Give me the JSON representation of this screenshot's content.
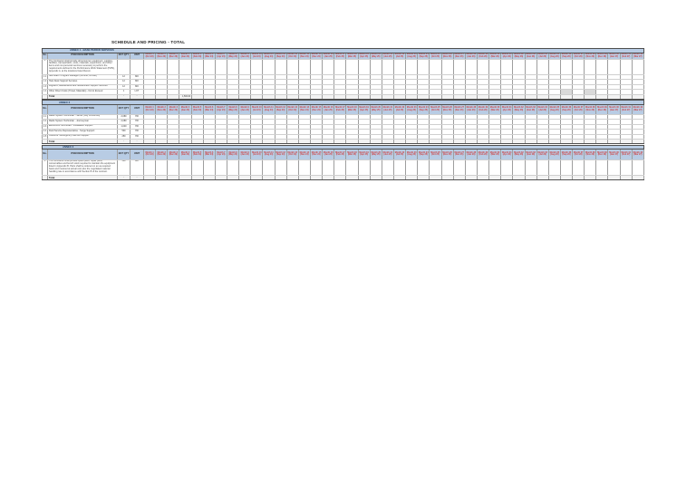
{
  "page": {
    "title": "SCHEDULE AND PRICING - TOTAL"
  },
  "columns": {
    "item_header": "No.",
    "desc_header": "ITEM DESCRIPTION",
    "qty_header": "EST QTY",
    "unit_header": "UNIT",
    "period_headers": [
      [
        "Month 1",
        "(Oct 23)"
      ],
      [
        "Month 2",
        "(Nov 23)"
      ],
      [
        "Month 3",
        "(Dec 23)"
      ],
      [
        "Month 4",
        "(Jan 24)"
      ],
      [
        "Month 5",
        "(Feb 24)"
      ],
      [
        "Month 6",
        "(Mar 24)"
      ],
      [
        "Month 7",
        "(Apr 24)"
      ],
      [
        "Month 8",
        "(May 24)"
      ],
      [
        "Month 9",
        "(Jun 24)"
      ],
      [
        "Month 10",
        "(Jul 24)"
      ],
      [
        "Month 11",
        "(Aug 24)"
      ],
      [
        "Month 12",
        "(Sep 24)"
      ],
      [
        "Month 13",
        "(Oct 24)"
      ],
      [
        "Month 14",
        "(Nov 24)"
      ],
      [
        "Month 15",
        "(Dec 24)"
      ],
      [
        "Month 16",
        "(Jan 25)"
      ],
      [
        "Month 17",
        "(Feb 25)"
      ],
      [
        "Month 18",
        "(Mar 25)"
      ],
      [
        "Month 19",
        "(Apr 25)"
      ],
      [
        "Month 20",
        "(May 25)"
      ],
      [
        "Month 21",
        "(Jun 25)"
      ],
      [
        "Month 22",
        "(Jul 25)"
      ],
      [
        "Month 23",
        "(Aug 25)"
      ],
      [
        "Month 24",
        "(Sep 25)"
      ],
      [
        "Month 25",
        "(Oct 25)"
      ],
      [
        "Month 26",
        "(Nov 25)"
      ],
      [
        "Month 27",
        "(Dec 25)"
      ],
      [
        "Month 28",
        "(Jan 26)"
      ],
      [
        "Month 29",
        "(Feb 26)"
      ],
      [
        "Month 30",
        "(Mar 26)"
      ],
      [
        "Month 31",
        "(Apr 26)"
      ],
      [
        "Month 32",
        "(May 26)"
      ],
      [
        "Month 33",
        "(Jun 26)"
      ],
      [
        "Month 34",
        "(Jul 26)"
      ],
      [
        "Month 35",
        "(Aug 26)"
      ],
      [
        "Month 36",
        "(Sep 26)"
      ],
      [
        "Month 37",
        "(Oct 26)"
      ],
      [
        "Month 38",
        "(Nov 26)"
      ],
      [
        "Month 39",
        "(Dec 26)"
      ],
      [
        "Month 40",
        "(Jan 27)"
      ],
      [
        "Month 41",
        "(Feb 27)"
      ],
      [
        "Month 42",
        "(Mar 27)"
      ]
    ]
  },
  "tables": [
    {
      "band_label": "ANNEX 1 - BASE PERIOD SERVICES",
      "rows": [
        {
          "kind": "tall",
          "num": "1",
          "desc": "The Contractor shall provide all personnel, equipment, supplies, facilities, transportation, tools, materials, supervision, and other items and non-personal services necessary to perform the requirements defined in the Performance Work Statement (PWS), Appendix A, at the locations listed therein.",
          "qty": "",
          "unit": ""
        },
        {
          "kind": "line",
          "num": "1.1",
          "desc": "Site Lead / Program Manager (full time, on-site)",
          "qty": "12",
          "unit": "MO"
        },
        {
          "kind": "line",
          "num": "1.2",
          "desc": "Help Desk Support Services",
          "qty": "12",
          "unit": "MO"
        },
        {
          "kind": "line",
          "num": "1.3",
          "desc": "Logistics, Maintenance and Sustainment Support Services",
          "qty": "12",
          "unit": "MO"
        },
        {
          "kind": "line",
          "num": "1.4",
          "desc": "Other Direct Costs (Travel, Materials) - Not to Exceed",
          "qty": "1",
          "unit": "LOT",
          "shaded": [
            35,
            37
          ]
        }
      ],
      "total_label": "Total",
      "total_qty": "-",
      "total_unit": "-",
      "total_cells": {
        "3": "1,500.00"
      }
    },
    {
      "band_label": "ANNEX 2",
      "rows": [
        {
          "kind": "line",
          "num": "2.1",
          "desc": "Radio System Technician - Senior (Key Personnel)",
          "qty": "2,080",
          "unit": "HR"
        },
        {
          "kind": "line",
          "num": "2.2",
          "desc": "Radio System Technician - Journeyman",
          "qty": "2,080",
          "unit": "HR"
        },
        {
          "kind": "line",
          "num": "2.3",
          "desc": "Electronics Technician - Installation Support",
          "qty": "1,040",
          "unit": "HR"
        },
        {
          "kind": "line",
          "num": "2.4",
          "desc": "Field Service Representative - Surge Support",
          "qty": "500",
          "unit": "HR"
        },
        {
          "kind": "line",
          "num": "2.5",
          "desc": "Overtime / Emergency Call-Out Support",
          "qty": "250",
          "unit": "HR"
        }
      ],
      "total_label": "Total",
      "total_qty": "-",
      "total_unit": "-",
      "total_cells": {}
    },
    {
      "band_label": "ANNEX 3",
      "rows": [
        {
          "kind": "tall",
          "num": "3",
          "desc": "The Contractor shall provide spare parts, repair parts, consumables and bench stock required to maintain the equipment listed in Appendix B. Parts shall be ordered on an as-required basis and invoiced at actual cost plus the negotiated material handling rate in accordance with Section B of the contract.",
          "qty": "500",
          "unit": "EA"
        }
      ],
      "total_label": "Total",
      "total_qty": "-",
      "total_unit": "-",
      "total_cells": {}
    }
  ]
}
